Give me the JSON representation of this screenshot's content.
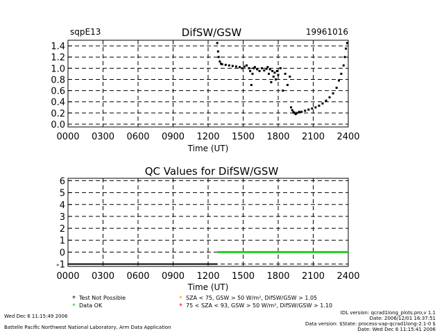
{
  "top": {
    "site": "sqpE13",
    "title": "DifSW/GSW",
    "date": "19961016"
  },
  "bottom": {
    "title": "QC Values for DifSW/GSW"
  },
  "axis": {
    "xlabel": "Time (UT)",
    "xticks": [
      "0000",
      "0300",
      "0600",
      "0900",
      "1200",
      "1500",
      "1800",
      "2100",
      "2400"
    ]
  },
  "legend": [
    {
      "symbol": "*",
      "color": "#000000",
      "label": "Test Not Possible"
    },
    {
      "symbol": "*",
      "color": "#22cc22",
      "label": "Data OK"
    },
    {
      "symbol": "*",
      "color": "#ff9900",
      "label": "SZA < 75, GSW > 50 W/m², DifSW/GSW > 1.05"
    },
    {
      "symbol": "*",
      "color": "#ff0000",
      "label": "75 < SZA < 93, GSW > 50 W/m², DifSW/GSW > 1.10"
    }
  ],
  "footer": {
    "left1": "Wed Dec  6 11:15:49 2006",
    "left2": "Battelle Pacific Northwest National Laboratory, Arm Data Application",
    "right1": "IDL version: qcrad1long_plots.pro,v 1.1",
    "right2": "Date: 2006/12/01 16:37:51",
    "right3": "Data version: $State: process-vap-qcrad1long-2.1-0 $",
    "right4": "Date: Wed Dec  6 11:15:41 2006"
  },
  "chart_data": [
    {
      "type": "scatter",
      "title": "DifSW/GSW",
      "xlabel": "Time (UT)",
      "ylabel": "",
      "xlim": [
        0,
        24
      ],
      "ylim": [
        -0.05,
        1.5
      ],
      "yticks": [
        0.0,
        0.2,
        0.4,
        0.6,
        0.8,
        1.0,
        1.2,
        1.4
      ],
      "grid": true,
      "series": [
        {
          "x": [
            12.78,
            12.85,
            12.9,
            13.0,
            13.1,
            13.2,
            13.5,
            13.8,
            14.1,
            14.4,
            14.7,
            14.9,
            15.1,
            15.3,
            15.5,
            15.6,
            15.7,
            15.8,
            15.9,
            16.0,
            16.2,
            16.4,
            16.6,
            16.8,
            17.0,
            17.1,
            17.2,
            17.3,
            17.4,
            17.5,
            17.6,
            17.7,
            17.8,
            17.9,
            18.0,
            18.2,
            18.4,
            18.6,
            18.8,
            19.0,
            19.1,
            19.2,
            19.3,
            19.4,
            19.5,
            19.6,
            19.8,
            20.0,
            20.3,
            20.6,
            20.9,
            21.2,
            21.5,
            21.8,
            22.1,
            22.4,
            22.7,
            23.0,
            23.2,
            23.4,
            23.6,
            23.7,
            23.8,
            23.9
          ],
          "y": [
            1.45,
            1.3,
            1.2,
            1.12,
            1.08,
            1.07,
            1.06,
            1.05,
            1.04,
            1.03,
            1.02,
            1.0,
            1.03,
            1.05,
            1.0,
            0.95,
            0.7,
            0.9,
            1.0,
            1.02,
            0.98,
            0.95,
            1.0,
            0.96,
            0.99,
            1.02,
            0.9,
            0.98,
            0.75,
            0.95,
            0.85,
            0.92,
            0.8,
            0.95,
            0.88,
            1.0,
            0.6,
            0.9,
            0.7,
            0.85,
            0.3,
            0.25,
            0.22,
            0.2,
            0.18,
            0.2,
            0.22,
            0.22,
            0.24,
            0.26,
            0.28,
            0.3,
            0.33,
            0.37,
            0.42,
            0.48,
            0.55,
            0.65,
            0.78,
            0.9,
            1.05,
            1.2,
            1.35,
            1.45
          ]
        }
      ]
    },
    {
      "type": "line",
      "title": "QC Values for DifSW/GSW",
      "xlabel": "Time (UT)",
      "ylabel": "",
      "xlim": [
        0,
        24
      ],
      "ylim": [
        -1.2,
        6.2
      ],
      "yticks": [
        -1,
        0,
        1,
        2,
        3,
        4,
        5,
        6
      ],
      "grid": true,
      "series": [
        {
          "name": "Test Not Possible",
          "color": "#000000",
          "x": [
            0,
            12.8
          ],
          "y": [
            -1,
            -1
          ]
        },
        {
          "name": "Data OK",
          "color": "#22cc22",
          "x": [
            12.8,
            24
          ],
          "y": [
            0,
            0
          ]
        }
      ]
    }
  ]
}
